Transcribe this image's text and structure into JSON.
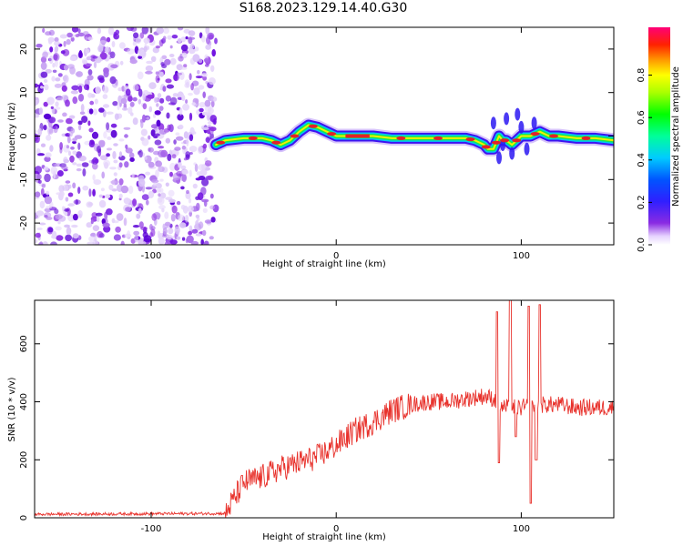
{
  "title": "S168.2023.129.14.40.G30",
  "colors": {
    "snr_line": "#e8322c",
    "noise_purple": "#8a2be2",
    "axis": "#000000"
  },
  "chart_data": [
    {
      "type": "heatmap",
      "xlabel": "Height of straight line (km)",
      "ylabel": "Frequency (Hz)",
      "xlim": [
        -163,
        150
      ],
      "ylim": [
        -25,
        25
      ],
      "xticks": [
        -100,
        0,
        100
      ],
      "yticks": [
        -20,
        -10,
        0,
        10,
        20
      ],
      "colorbar": {
        "label": "Normalized spectral amplitude",
        "ticks": [
          "0.0",
          "0.2",
          "0.4",
          "0.6",
          "0.8"
        ],
        "range": [
          0,
          1
        ]
      },
      "noise_region_x": [
        -163,
        -65
      ],
      "ridge": {
        "x": [
          -65,
          -60,
          -50,
          -40,
          -35,
          -30,
          -25,
          -20,
          -15,
          -10,
          -5,
          0,
          10,
          20,
          30,
          40,
          50,
          60,
          70,
          75,
          80,
          82,
          85,
          88,
          90,
          92,
          95,
          100,
          105,
          110,
          115,
          120,
          130,
          140,
          150
        ],
        "y": [
          -2,
          -1,
          -0.5,
          -0.5,
          -1,
          -2,
          -1,
          1,
          2.5,
          2,
          1,
          0,
          0,
          0,
          -0.5,
          -0.5,
          -0.5,
          -0.5,
          -0.5,
          -1,
          -2,
          -3,
          -3,
          0,
          -1,
          -1,
          -2,
          0,
          0,
          1,
          0,
          0,
          -0.5,
          -0.5,
          -1
        ]
      }
    },
    {
      "type": "line",
      "xlabel": "Height of straight line (km)",
      "ylabel": "SNR (10 * v/v)",
      "xlim": [
        -163,
        150
      ],
      "ylim": [
        0,
        750
      ],
      "xticks": [
        -100,
        0,
        100
      ],
      "yticks": [
        0,
        200,
        400,
        600
      ],
      "trend": {
        "x": [
          -163,
          -60,
          -50,
          -40,
          -30,
          -20,
          -10,
          0,
          10,
          20,
          30,
          40,
          50,
          60,
          70,
          80,
          85,
          90,
          100,
          110,
          120,
          130,
          140,
          150
        ],
        "y": [
          12,
          15,
          120,
          140,
          170,
          190,
          210,
          250,
          300,
          330,
          370,
          390,
          400,
          400,
          410,
          420,
          410,
          380,
          380,
          390,
          390,
          380,
          380,
          380
        ]
      },
      "spikes": [
        {
          "x": 87,
          "y": 710
        },
        {
          "x": 88,
          "y": 190
        },
        {
          "x": 94,
          "y": 750
        },
        {
          "x": 97,
          "y": 280
        },
        {
          "x": 104,
          "y": 730
        },
        {
          "x": 105,
          "y": 50
        },
        {
          "x": 108,
          "y": 200
        },
        {
          "x": 110,
          "y": 735
        }
      ]
    }
  ]
}
